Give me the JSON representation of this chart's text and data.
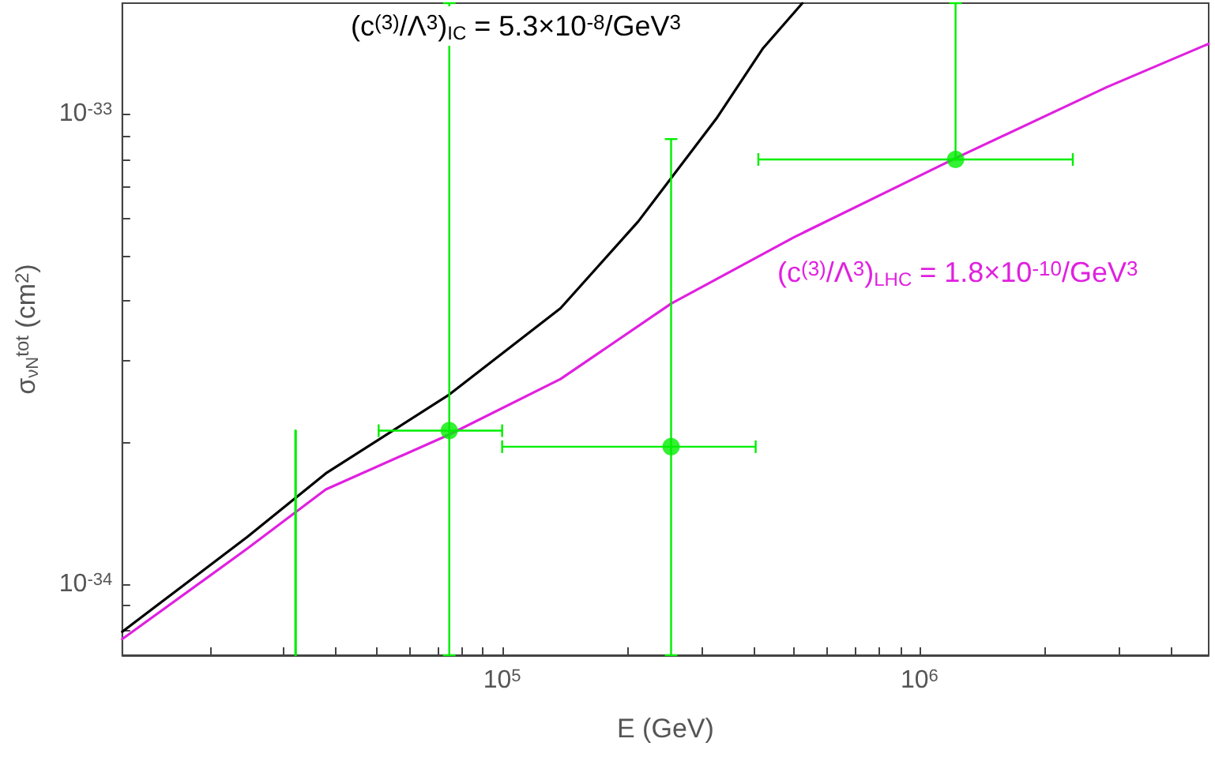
{
  "chart_data": {
    "type": "line",
    "xlabel": "E (GeV)",
    "ylabel": "σ$_{νN}$$^{tot}$ (cm$^{2}$)",
    "log": "xy",
    "xlim": [
      12300,
      4930000
    ],
    "ylim": [
      7.06e-35,
      1.72e-33
    ],
    "xticks": [
      {
        "value": 20000,
        "label": null
      },
      {
        "value": 30000,
        "label": null
      },
      {
        "value": 40000,
        "label": null
      },
      {
        "value": 50000,
        "label": null
      },
      {
        "value": 60000,
        "label": null
      },
      {
        "value": 70000,
        "label": null
      },
      {
        "value": 80000,
        "label": null
      },
      {
        "value": 90000,
        "label": null
      },
      {
        "value": 100000,
        "label": "10$^{5}$"
      },
      {
        "value": 200000,
        "label": null
      },
      {
        "value": 300000,
        "label": null
      },
      {
        "value": 400000,
        "label": null
      },
      {
        "value": 500000,
        "label": null
      },
      {
        "value": 600000,
        "label": null
      },
      {
        "value": 700000,
        "label": null
      },
      {
        "value": 800000,
        "label": null
      },
      {
        "value": 900000,
        "label": null
      },
      {
        "value": 1000000,
        "label": "10$^{6}$"
      },
      {
        "value": 2000000,
        "label": null
      },
      {
        "value": 3000000,
        "label": null
      },
      {
        "value": 4000000,
        "label": null
      }
    ],
    "yticks": [
      {
        "value": 8e-35,
        "label": null
      },
      {
        "value": 9e-35,
        "label": null
      },
      {
        "value": 1e-34,
        "label": "10$^{-34}$"
      },
      {
        "value": 2e-34,
        "label": null
      },
      {
        "value": 3e-34,
        "label": null
      },
      {
        "value": 4e-34,
        "label": null
      },
      {
        "value": 5e-34,
        "label": null
      },
      {
        "value": 6e-34,
        "label": null
      },
      {
        "value": 7e-34,
        "label": null
      },
      {
        "value": 8e-34,
        "label": null
      },
      {
        "value": 9e-34,
        "label": null
      },
      {
        "value": 1e-33,
        "label": "10$^{-33}$"
      }
    ],
    "annotations": [
      "(c$^{(3)}$/Λ$^{3}$)$_{IC}$ = 5.3×10$^{-8}$/GeV$^{3}$",
      "(c$^{(3)}$/Λ$^{3}$)$_{LHC}$ = 1.8×10$^{-10}$/GeV$^{3}$"
    ],
    "series": [
      {
        "color": "#000000",
        "x": [
          12300,
          24500,
          37800,
          74700,
          138000,
          212000,
          326000,
          422000,
          524000
        ],
        "values": [
          7.92e-35,
          1.26e-34,
          1.72e-34,
          2.53e-34,
          3.86e-34,
          5.91e-34,
          9.77e-34,
          1.38e-33,
          1.72e-33
        ]
      },
      {
        "color": "#e020e0",
        "x": [
          12300,
          24500,
          37800,
          74700,
          138000,
          254000,
          501000,
          1220000,
          2810000,
          4930000
        ],
        "values": [
          7.64e-35,
          1.19e-34,
          1.59e-34,
          2.08e-34,
          2.73e-34,
          3.95e-34,
          5.47e-34,
          8.05e-34,
          1.14e-33,
          1.41e-33
        ]
      },
      {
        "type": "scatter",
        "color": "#00ee00",
        "marker": "circle",
        "x": [
          74700,
          254000,
          1220000
        ],
        "values": [
          2.12e-34,
          1.96e-34,
          8e-34
        ],
        "errors": [
          [
            7.06e-35,
            1.72e-33
          ],
          [
            7.06e-35,
            8.84e-34
          ],
          [
            8e-34,
            1.72e-33
          ]
        ],
        "xerrors": [
          [
            50600,
            100000
          ],
          [
            100000,
            405000
          ],
          [
            411000,
            2330000
          ]
        ]
      },
      {
        "type": "line",
        "color": "#00ee00",
        "x": [
          32000,
          32000
        ],
        "values": [
          7.06e-35,
          2.12e-34
        ]
      }
    ]
  }
}
